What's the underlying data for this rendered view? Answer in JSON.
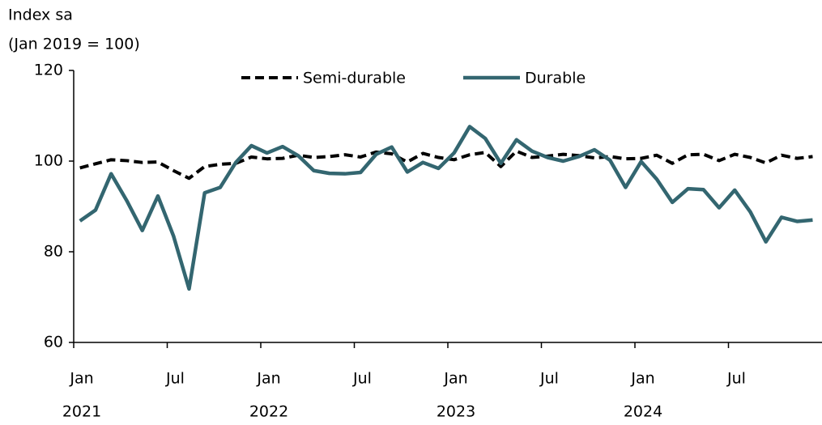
{
  "chart_data": {
    "type": "line",
    "title_lines": [
      "Index sa",
      "(Jan 2019 = 100)"
    ],
    "categories": [
      "Jan",
      null,
      null,
      null,
      null,
      null,
      "Jul",
      null,
      null,
      null,
      null,
      null,
      "Jan",
      null,
      null,
      null,
      null,
      null,
      "Jul",
      null,
      null,
      null,
      null,
      null,
      "Jan",
      null,
      null,
      null,
      null,
      null,
      "Jul",
      null,
      null,
      null,
      null,
      null,
      "Jan",
      null,
      null,
      null,
      null,
      null,
      "Jul",
      null,
      null,
      null,
      null,
      null
    ],
    "years": [
      "2021",
      null,
      null,
      null,
      null,
      null,
      null,
      null,
      null,
      null,
      null,
      null,
      "2022",
      null,
      null,
      null,
      null,
      null,
      null,
      null,
      null,
      null,
      null,
      null,
      "2023",
      null,
      null,
      null,
      null,
      null,
      null,
      null,
      null,
      null,
      null,
      null,
      "2024",
      null,
      null,
      null,
      null,
      null,
      null,
      null,
      null,
      null,
      null,
      null
    ],
    "series": [
      {
        "name": "Semi-durable",
        "color": "#000000",
        "dashed": true,
        "values": [
          98.5,
          99.4,
          100.3,
          100.1,
          99.7,
          99.8,
          97.9,
          96.2,
          98.8,
          99.3,
          99.5,
          100.9,
          100.5,
          100.6,
          101.3,
          100.8,
          101.0,
          101.4,
          100.9,
          102.0,
          101.6,
          99.8,
          101.7,
          100.8,
          100.3,
          101.4,
          101.9,
          98.8,
          102.2,
          100.8,
          101.1,
          101.5,
          101.2,
          100.7,
          101.0,
          100.5,
          100.6,
          101.3,
          99.5,
          101.4,
          101.5,
          100.1,
          101.5,
          100.8,
          99.6,
          101.3,
          100.6,
          101.0
        ]
      },
      {
        "name": "Durable",
        "color": "#336670",
        "dashed": false,
        "values": [
          86.8,
          89.2,
          97.2,
          91.3,
          84.7,
          92.3,
          83.5,
          71.8,
          93.0,
          94.2,
          99.7,
          103.4,
          101.8,
          103.2,
          101.2,
          97.9,
          97.3,
          97.2,
          97.5,
          101.5,
          103.1,
          97.6,
          99.7,
          98.4,
          101.8,
          107.6,
          105.0,
          99.5,
          104.7,
          102.2,
          100.8,
          100.0,
          101.0,
          102.5,
          100.2,
          94.2,
          99.9,
          96.0,
          90.9,
          93.9,
          93.7,
          89.7,
          93.6,
          88.8,
          82.2,
          87.6,
          86.7,
          87.0
        ]
      }
    ],
    "ylim": [
      60,
      120
    ],
    "yticks": [
      60,
      80,
      100,
      120
    ],
    "grid": false
  }
}
